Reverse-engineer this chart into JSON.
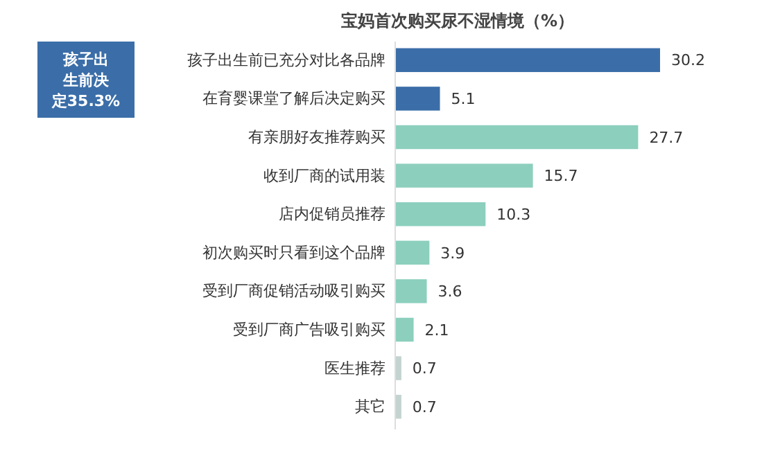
{
  "chart_data": {
    "type": "bar",
    "orientation": "horizontal",
    "title": "宝妈首次购买尿不湿情境（%）",
    "categories": [
      "孩子出生前已充分对比各品牌",
      "在育婴课堂了解后决定购买",
      "有亲朋好友推荐购买",
      "收到厂商的试用装",
      "店内促销员推荐",
      "初次购买时只看到这个品牌",
      "受到厂商促销活动吸引购买",
      "受到厂商广告吸引购买",
      "医生推荐",
      "其它"
    ],
    "values": [
      30.2,
      5.1,
      27.7,
      15.7,
      10.3,
      3.9,
      3.6,
      2.1,
      0.7,
      0.7
    ],
    "colors": [
      "#3b6ea8",
      "#3b6ea8",
      "#8ccfbd",
      "#8ccfbd",
      "#8ccfbd",
      "#8ccfbd",
      "#8ccfbd",
      "#8ccfbd",
      "#c3d3d0",
      "#c3d3d0"
    ],
    "data_labels": true,
    "annotations": [
      "孩子出生前决定35.3%"
    ]
  }
}
